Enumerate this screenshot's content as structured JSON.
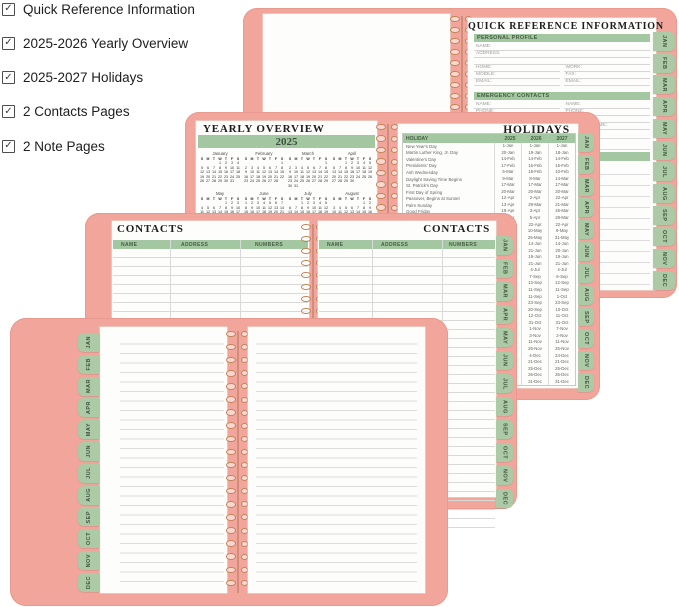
{
  "checklist": {
    "items": [
      "Quick Reference Information",
      "2025-2026 Yearly Overview",
      "2025-2027 Holidays",
      "2 Contacts Pages",
      "2 Note Pages"
    ]
  },
  "months_tabs": [
    "JAN",
    "FEB",
    "MAR",
    "APR",
    "MAY",
    "JUN",
    "JUL",
    "AUG",
    "SEP",
    "OCT",
    "NOV",
    "DEC"
  ],
  "quick_reference": {
    "title": "QUICK REFERENCE INFORMATION",
    "sections": [
      {
        "label": "PERSONAL PROFILE",
        "rows": [
          [
            "NAME:"
          ],
          [
            "ADDRESS:"
          ],
          [],
          [
            "HOME:",
            "WORK:"
          ],
          [
            "MOBILE:",
            "FAX:"
          ],
          [
            "EMAIL:",
            "EMAIL:"
          ]
        ]
      },
      {
        "label": "EMERGENCY CONTACTS",
        "rows": [
          [
            "NAME:",
            "NAME:"
          ],
          [
            "PHONE:",
            "PHONE:"
          ],
          [],
          [
            "DOCTOR'S NAME:",
            "DOCTOR'S NAME:"
          ]
        ]
      }
    ]
  },
  "yearly_overview": {
    "title": "YEARLY OVERVIEW",
    "year": "2025",
    "weekdays": [
      "S",
      "M",
      "T",
      "W",
      "T",
      "F",
      "S"
    ],
    "months": [
      {
        "name": "January",
        "first_dow": 3,
        "days": 31
      },
      {
        "name": "February",
        "first_dow": 6,
        "days": 28
      },
      {
        "name": "March",
        "first_dow": 6,
        "days": 31
      },
      {
        "name": "April",
        "first_dow": 2,
        "days": 30
      },
      {
        "name": "May",
        "first_dow": 4,
        "days": 31
      },
      {
        "name": "June",
        "first_dow": 0,
        "days": 30
      },
      {
        "name": "July",
        "first_dow": 2,
        "days": 31
      },
      {
        "name": "August",
        "first_dow": 5,
        "days": 31
      }
    ]
  },
  "holidays": {
    "title": "HOLIDAYS",
    "columns": [
      "HOLIDAY",
      "2025",
      "2026",
      "2027"
    ],
    "rows": [
      [
        "New Year's Day",
        "1-Jan",
        "1-Jan",
        "1-Jan"
      ],
      [
        "Martin Luther King, Jr. Day",
        "20-Jan",
        "19-Jan",
        "18-Jan"
      ],
      [
        "Valentine's Day",
        "14-Feb",
        "14-Feb",
        "14-Feb"
      ],
      [
        "Presidents' Day",
        "17-Feb",
        "16-Feb",
        "15-Feb"
      ],
      [
        "Ash Wednesday",
        "5-Mar",
        "18-Feb",
        "10-Feb"
      ],
      [
        "Daylight Saving Time Begins",
        "9-Mar",
        "8-Mar",
        "14-Mar"
      ],
      [
        "St. Patrick's Day",
        "17-Mar",
        "17-Mar",
        "17-Mar"
      ],
      [
        "First Day of Spring",
        "20-Mar",
        "20-Mar",
        "20-Mar"
      ],
      [
        "Passover, Begins at Sunset",
        "12-Apr",
        "2-Apr",
        "22-Apr"
      ],
      [
        "Palm Sunday",
        "13-Apr",
        "29-Mar",
        "21-Mar"
      ],
      [
        "Good Friday",
        "18-Apr",
        "3-Apr",
        "26-Mar"
      ],
      [
        "Easter",
        "20-Apr",
        "5-Apr",
        "28-Mar"
      ],
      [
        "Earth Day",
        "22-Apr",
        "22-Apr",
        "22-Apr"
      ],
      [
        "Mother's Day",
        "11-May",
        "10-May",
        "9-May"
      ],
      [
        "Memorial Day",
        "26-May",
        "25-May",
        "31-May"
      ],
      [
        "Flag Day",
        "14-Jun",
        "14-Jun",
        "14-Jun"
      ],
      [
        "Father's Day",
        "15-Jun",
        "21-Jun",
        "20-Jun"
      ],
      [
        "Juneteenth",
        "19-Jun",
        "19-Jun",
        "19-Jun"
      ],
      [
        "First Day of Summer",
        "20-Jun",
        "21-Jun",
        "21-Jun"
      ],
      [
        "Independence Day",
        "4-Jul",
        "4-Jul",
        "4-Jul"
      ],
      [
        "Labor Day",
        "1-Sep",
        "7-Sep",
        "6-Sep"
      ],
      [
        "Grandparents Day",
        "7-Sep",
        "13-Sep",
        "12-Sep"
      ],
      [
        "Patriot Day",
        "11-Sep",
        "11-Sep",
        "11-Sep"
      ],
      [
        "Rosh Hashanah, Begins at Sunset",
        "22-Sep",
        "11-Sep",
        "1-Oct"
      ],
      [
        "First Day of Autumn",
        "22-Sep",
        "23-Sep",
        "23-Sep"
      ],
      [
        "Yom Kippur, Begins at Sunset",
        "1-Oct",
        "20-Sep",
        "10-Oct"
      ],
      [
        "Columbus Day",
        "13-Oct",
        "12-Oct",
        "11-Oct"
      ],
      [
        "Halloween",
        "31-Oct",
        "31-Oct",
        "31-Oct"
      ],
      [
        "Daylight Saving Time Ends",
        "2-Nov",
        "1-Nov",
        "7-Nov"
      ],
      [
        "Election Day",
        "4-Nov",
        "3-Nov",
        "2-Nov"
      ],
      [
        "Veterans Day",
        "11-Nov",
        "11-Nov",
        "11-Nov"
      ],
      [
        "Thanksgiving Day",
        "27-Nov",
        "26-Nov",
        "25-Nov"
      ],
      [
        "Hanukkah, Begins at Sunset",
        "14-Dec",
        "4-Dec",
        "24-Dec"
      ],
      [
        "First Day of Winter",
        "21-Dec",
        "21-Dec",
        "21-Dec"
      ],
      [
        "Christmas Day",
        "25-Dec",
        "25-Dec",
        "25-Dec"
      ],
      [
        "Kwanzaa Begins",
        "26-Dec",
        "26-Dec",
        "26-Dec"
      ],
      [
        "New Year's Eve",
        "31-Dec",
        "31-Dec",
        "31-Dec"
      ]
    ]
  },
  "contacts": {
    "title": "CONTACTS",
    "columns": [
      "NAME",
      "ADDRESS",
      "NUMBERS"
    ]
  },
  "colors": {
    "cover": "#f2a69b",
    "tab_green": "#accaa6",
    "header_green": "#a3c7a0",
    "spiral": "#c28455"
  }
}
